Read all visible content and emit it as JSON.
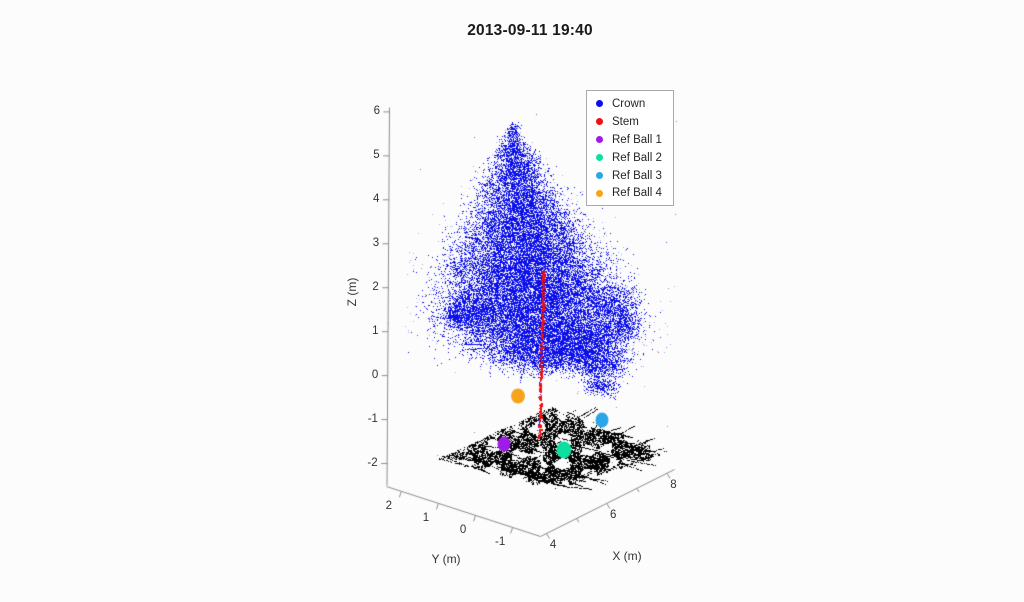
{
  "figure": {
    "title": "2013-09-11 19:40",
    "background": "#fcfcfc"
  },
  "chart_data": {
    "type": "scatter",
    "projection": "3d",
    "title": "2013-09-11 19:40",
    "xlabel": "X (m)",
    "ylabel": "Y (m)",
    "zlabel": "Z (m)",
    "grid": false,
    "axes": {
      "x": {
        "range": [
          4,
          8
        ],
        "tick_labels": [
          "4",
          "6",
          "8"
        ],
        "tick_values": [
          4,
          6,
          8
        ],
        "minor_tick_values": [
          5,
          7
        ]
      },
      "y": {
        "range": [
          -1,
          2
        ],
        "tick_labels": [
          "2",
          "1",
          "0",
          "-1"
        ],
        "tick_values": [
          2,
          1,
          0,
          -1
        ]
      },
      "z": {
        "range": [
          -2,
          6
        ],
        "tick_labels": [
          "6",
          "5",
          "4",
          "3",
          "2",
          "1",
          "0",
          "-1",
          "-2"
        ],
        "tick_values": [
          6,
          5,
          4,
          3,
          2,
          1,
          0,
          -1,
          -2
        ]
      }
    },
    "legend": {
      "position": "top-right",
      "entries": [
        {
          "label": "Crown",
          "color": "#0b0fe8"
        },
        {
          "label": "Stem",
          "color": "#ef1010"
        },
        {
          "label": "Ref Ball 1",
          "color": "#a01ae8"
        },
        {
          "label": "Ref Ball 2",
          "color": "#0ddfa0"
        },
        {
          "label": "Ref Ball 3",
          "color": "#2aa6e8"
        },
        {
          "label": "Ref Ball 4",
          "color": "#f5a41c"
        }
      ]
    },
    "series": [
      {
        "name": "Crown",
        "color": "#0b0fe8",
        "marker": "point",
        "kind": "point-cloud",
        "description": "Dense blue tree-crown laser point cloud",
        "approx_extent_m": {
          "z": [
            0.3,
            5.8
          ]
        }
      },
      {
        "name": "Stem",
        "color": "#ef1010",
        "marker": "point",
        "kind": "point-cloud",
        "description": "Vertical line of red stem points below/inside crown",
        "approx_extent_m": {
          "z": [
            -1.4,
            2.4
          ]
        }
      },
      {
        "name": "Ref Ball 1",
        "color": "#a01ae8",
        "marker": "sphere",
        "kind": "reference-ball",
        "approx_z_m": -1.6
      },
      {
        "name": "Ref Ball 2",
        "color": "#0ddfa0",
        "marker": "sphere",
        "kind": "reference-ball",
        "approx_z_m": -1.7
      },
      {
        "name": "Ref Ball 3",
        "color": "#2aa6e8",
        "marker": "sphere",
        "kind": "reference-ball",
        "approx_z_m": -1.0
      },
      {
        "name": "Ref Ball 4",
        "color": "#f5a41c",
        "marker": "sphere",
        "kind": "reference-ball",
        "approx_z_m": -0.5
      },
      {
        "name": "Ground (unlabeled)",
        "color": "#000000",
        "marker": "point",
        "kind": "point-cloud",
        "description": "Black ground/terrain points around tree base, not shown in legend",
        "approx_extent_m": {
          "z": [
            -2.3,
            -1.2
          ]
        }
      }
    ]
  }
}
